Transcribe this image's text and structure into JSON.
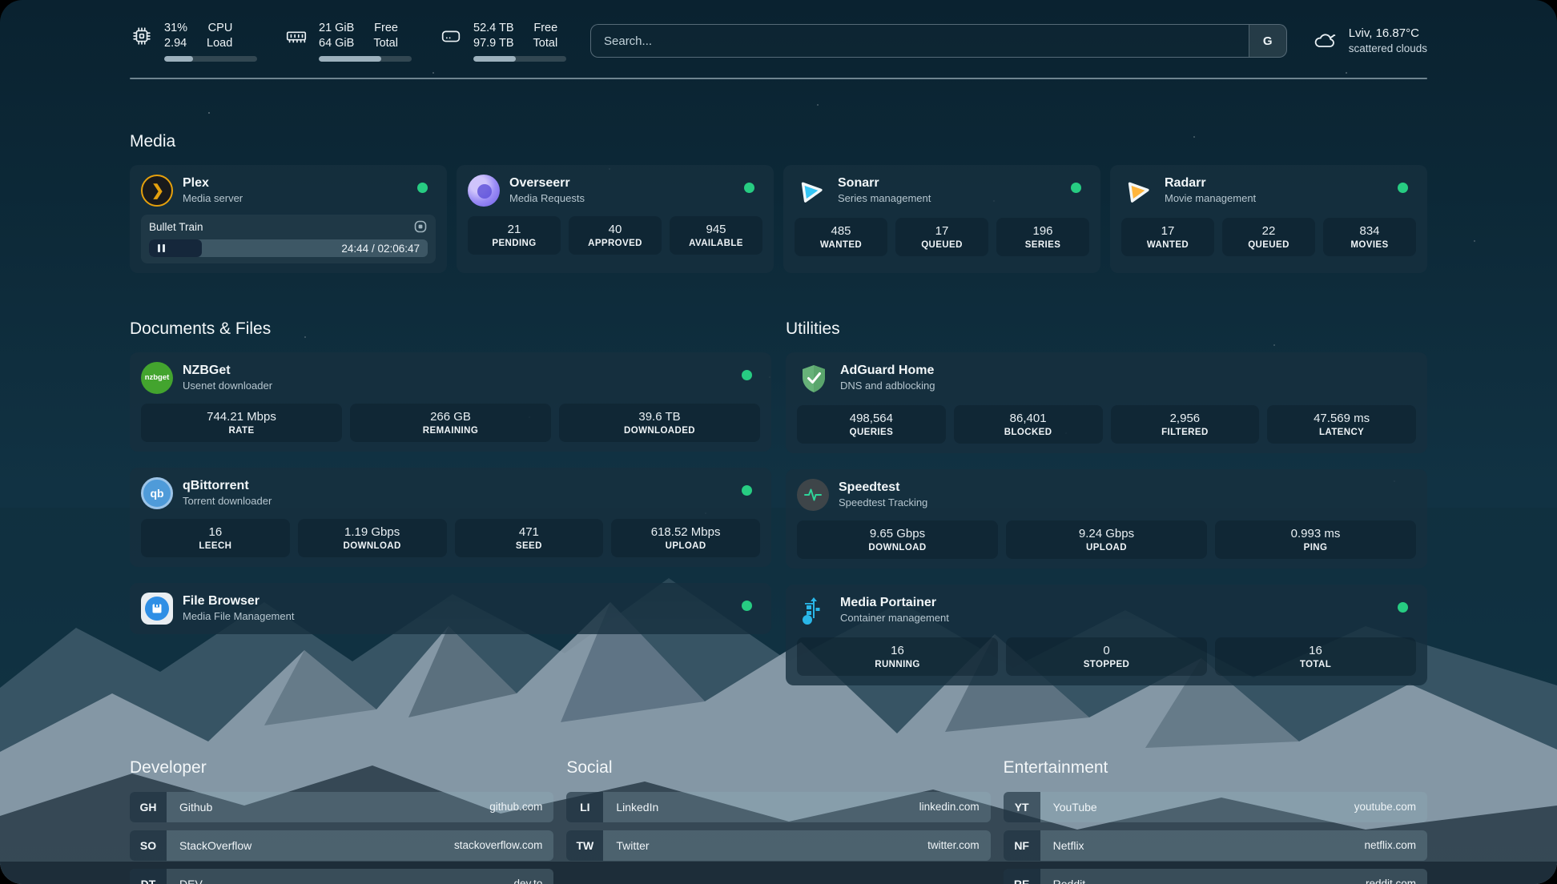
{
  "colors": {
    "status_green": "#27cc82",
    "plex_amber": "#e5a00d",
    "overseerr_purple": "#6c5ce7",
    "sonarr_cyan": "#35c5f4",
    "radarr_amber": "#ffb53c",
    "nzbget_green": "#43a42e",
    "qbittorrent_blue": "#4f9bd9",
    "adguard_green": "#67b279",
    "speedtest_green": "#2fd49a",
    "filebrowser_blue": "#2f8fe5",
    "portainer_blue": "#29b6e8"
  },
  "topbar": {
    "cpu": {
      "value_top": "31%",
      "value_bottom": "2.94",
      "label_top": "CPU",
      "label_bottom": "Load",
      "progress": 31
    },
    "memory": {
      "value_top": "21 GiB",
      "value_bottom": "64 GiB",
      "label_top": "Free",
      "label_bottom": "Total",
      "progress": 67
    },
    "storage": {
      "value_top": "52.4 TB",
      "value_bottom": "97.9 TB",
      "label_top": "Free",
      "label_bottom": "Total",
      "progress": 46
    },
    "search": {
      "placeholder": "Search...",
      "engine_button": "G"
    },
    "weather": {
      "location_temp": "Lviv, 16.87°C",
      "condition": "scattered clouds"
    }
  },
  "sections": {
    "media": "Media",
    "documents": "Documents & Files",
    "utilities": "Utilities",
    "developer": "Developer",
    "social": "Social",
    "entertainment": "Entertainment"
  },
  "apps": {
    "plex": {
      "title": "Plex",
      "subtitle": "Media server",
      "player": {
        "now_playing": "Bullet Train",
        "time": "24:44 / 02:06:47",
        "progress": 19
      }
    },
    "overseerr": {
      "title": "Overseerr",
      "subtitle": "Media Requests",
      "stats": [
        {
          "value": "21",
          "label": "PENDING"
        },
        {
          "value": "40",
          "label": "APPROVED"
        },
        {
          "value": "945",
          "label": "AVAILABLE"
        }
      ]
    },
    "sonarr": {
      "title": "Sonarr",
      "subtitle": "Series management",
      "stats": [
        {
          "value": "485",
          "label": "WANTED"
        },
        {
          "value": "17",
          "label": "QUEUED"
        },
        {
          "value": "196",
          "label": "SERIES"
        }
      ]
    },
    "radarr": {
      "title": "Radarr",
      "subtitle": "Movie management",
      "stats": [
        {
          "value": "17",
          "label": "WANTED"
        },
        {
          "value": "22",
          "label": "QUEUED"
        },
        {
          "value": "834",
          "label": "MOVIES"
        }
      ]
    },
    "nzbget": {
      "title": "NZBGet",
      "subtitle": "Usenet downloader",
      "icon_text": "nzbget",
      "stats": [
        {
          "value": "744.21 Mbps",
          "label": "RATE"
        },
        {
          "value": "266 GB",
          "label": "REMAINING"
        },
        {
          "value": "39.6 TB",
          "label": "DOWNLOADED"
        }
      ]
    },
    "qbittorrent": {
      "title": "qBittorrent",
      "subtitle": "Torrent downloader",
      "icon_text": "qb",
      "stats": [
        {
          "value": "16",
          "label": "LEECH"
        },
        {
          "value": "1.19 Gbps",
          "label": "DOWNLOAD"
        },
        {
          "value": "471",
          "label": "SEED"
        },
        {
          "value": "618.52 Mbps",
          "label": "UPLOAD"
        }
      ]
    },
    "filebrowser": {
      "title": "File Browser",
      "subtitle": "Media File Management"
    },
    "adguard": {
      "title": "AdGuard Home",
      "subtitle": "DNS and adblocking",
      "stats": [
        {
          "value": "498,564",
          "label": "QUERIES"
        },
        {
          "value": "86,401",
          "label": "BLOCKED"
        },
        {
          "value": "2,956",
          "label": "FILTERED"
        },
        {
          "value": "47.569 ms",
          "label": "LATENCY"
        }
      ]
    },
    "speedtest": {
      "title": "Speedtest",
      "subtitle": "Speedtest Tracking",
      "stats": [
        {
          "value": "9.65 Gbps",
          "label": "DOWNLOAD"
        },
        {
          "value": "9.24 Gbps",
          "label": "UPLOAD"
        },
        {
          "value": "0.993 ms",
          "label": "PING"
        }
      ]
    },
    "portainer": {
      "title": "Media Portainer",
      "subtitle": "Container management",
      "stats": [
        {
          "value": "16",
          "label": "RUNNING"
        },
        {
          "value": "0",
          "label": "STOPPED"
        },
        {
          "value": "16",
          "label": "TOTAL"
        }
      ]
    }
  },
  "bookmarks": {
    "developer": [
      {
        "abbr": "GH",
        "name": "Github",
        "url": "github.com"
      },
      {
        "abbr": "SO",
        "name": "StackOverflow",
        "url": "stackoverflow.com"
      },
      {
        "abbr": "DT",
        "name": "DEV",
        "url": "dev.to"
      }
    ],
    "social": [
      {
        "abbr": "LI",
        "name": "LinkedIn",
        "url": "linkedin.com"
      },
      {
        "abbr": "TW",
        "name": "Twitter",
        "url": "twitter.com"
      }
    ],
    "entertainment": [
      {
        "abbr": "YT",
        "name": "YouTube",
        "url": "youtube.com"
      },
      {
        "abbr": "NF",
        "name": "Netflix",
        "url": "netflix.com"
      },
      {
        "abbr": "RE",
        "name": "Reddit",
        "url": "reddit.com"
      }
    ]
  }
}
